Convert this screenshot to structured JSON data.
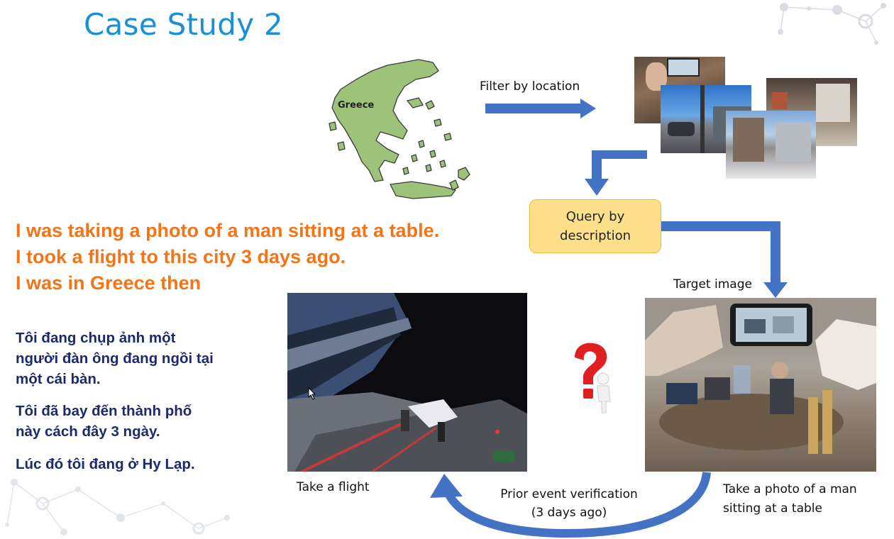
{
  "slide": {
    "title": "Case Study 2",
    "map_label": "Greece",
    "filter_label": "Filter by location",
    "query_box": {
      "line1": "Query by",
      "line2": "description"
    },
    "target_label": "Target image",
    "english_lines": [
      "I was taking a photo of a man sitting at a table.",
      "I took a flight to this city 3 days ago.",
      "I was in Greece then"
    ],
    "vietnamese_paragraphs": [
      {
        "line1": "Tôi đang chụp ảnh một",
        "line2": "người đàn ông đang ngồi tại",
        "line3": "một cái bàn."
      },
      {
        "line1": "Tôi đã bay đến thành phố",
        "line2": "này cách đây 3 ngày."
      },
      {
        "line1": "Lúc đó tôi đang ở Hy Lạp."
      }
    ],
    "flight_caption": "Take a flight",
    "target_caption": {
      "line1": "Take a photo of a man",
      "line2": "sitting at a table"
    },
    "prior_event": {
      "line1": "Prior event verification",
      "line2": "(3 days ago)"
    },
    "colors": {
      "title": "#1a8fd6",
      "english_text": "#f57418",
      "vietnamese_text": "#1b2a6e",
      "arrows": "#4472c4",
      "query_box_fill": "#ffe08a",
      "map_fill": "#9dc37a",
      "question_mark": "#e02020"
    }
  }
}
